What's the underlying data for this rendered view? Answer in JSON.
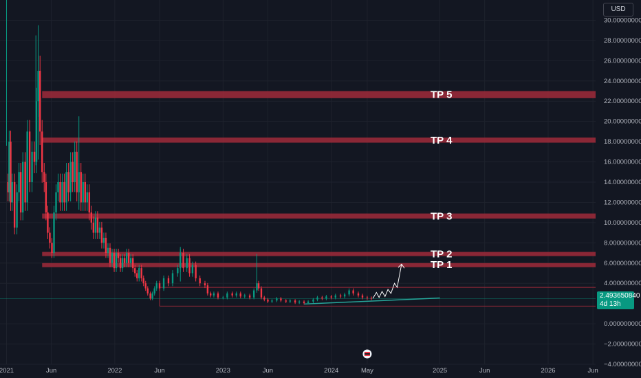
{
  "currency": "USD",
  "last_price": {
    "value": "2.493650840",
    "countdown": "4d 13h",
    "numeric": 2.49365084
  },
  "colors": {
    "background": "#131722",
    "grid": "#1e222d",
    "up": "#089981",
    "down": "#f23645",
    "band": "#a02a3a",
    "projection": "#ffffff",
    "trendline": "#26a69a"
  },
  "event_marker_icon": "earnings-flag-icon",
  "chart_data": {
    "type": "candlestick",
    "title": "",
    "y_axis": {
      "range": [
        -4,
        32
      ],
      "ticks": [
        30,
        28,
        26,
        24,
        22,
        20,
        18,
        16,
        14,
        12,
        10,
        8,
        6,
        4,
        0,
        -2,
        -4
      ],
      "tick_labels": [
        "30.000000000",
        "28.000000000",
        "26.000000000",
        "24.000000000",
        "22.000000000",
        "20.000000000",
        "18.000000000",
        "16.000000000",
        "14.000000000",
        "12.000000000",
        "10.000000000",
        "8.000000000",
        "6.000000000",
        "4.000000000",
        "0.000000000",
        "−2.000000000",
        "−4.000000000"
      ]
    },
    "x_axis": {
      "range": [
        "2020-12-10",
        "2026-06-10"
      ],
      "ticks": [
        "2021-01-01",
        "2021-06-01",
        "2022-01-01",
        "2022-06-01",
        "2023-01-01",
        "2023-06-01",
        "2024-01-01",
        "2024-05-01",
        "2025-01-01",
        "2025-06-01",
        "2026-01-01",
        "2026-06-01"
      ],
      "tick_labels": [
        "2021",
        "Jun",
        "2022",
        "Jun",
        "2023",
        "Jun",
        "2024",
        "May",
        "2025",
        "Jun",
        "2026",
        "Jun"
      ]
    },
    "price_path": [
      [
        "2021-01-01",
        14
      ],
      [
        "2021-01-06",
        13
      ],
      [
        "2021-01-10",
        18
      ],
      [
        "2021-01-15",
        12
      ],
      [
        "2021-01-20",
        14
      ],
      [
        "2021-01-28",
        9.5
      ],
      [
        "2021-02-05",
        13
      ],
      [
        "2021-02-12",
        15
      ],
      [
        "2021-02-18",
        11
      ],
      [
        "2021-02-25",
        16
      ],
      [
        "2021-03-05",
        12
      ],
      [
        "2021-03-12",
        19
      ],
      [
        "2021-03-20",
        14
      ],
      [
        "2021-03-28",
        17
      ],
      [
        "2021-04-05",
        16
      ],
      [
        "2021-04-12",
        22
      ],
      [
        "2021-04-18",
        25
      ],
      [
        "2021-04-24",
        19
      ],
      [
        "2021-05-01",
        15
      ],
      [
        "2021-05-08",
        14
      ],
      [
        "2021-05-14",
        11
      ],
      [
        "2021-05-20",
        9
      ],
      [
        "2021-05-27",
        8
      ],
      [
        "2021-06-03",
        7
      ],
      [
        "2021-06-10",
        11
      ],
      [
        "2021-06-17",
        13
      ],
      [
        "2021-06-24",
        14
      ],
      [
        "2021-07-01",
        12
      ],
      [
        "2021-07-08",
        14
      ],
      [
        "2021-07-15",
        12
      ],
      [
        "2021-07-22",
        15
      ],
      [
        "2021-07-29",
        13
      ],
      [
        "2021-08-05",
        16
      ],
      [
        "2021-08-12",
        14
      ],
      [
        "2021-08-19",
        17
      ],
      [
        "2021-08-26",
        13
      ],
      [
        "2021-09-02",
        15
      ],
      [
        "2021-09-09",
        12
      ],
      [
        "2021-09-16",
        14
      ],
      [
        "2021-09-23",
        12
      ],
      [
        "2021-09-30",
        13
      ],
      [
        "2021-10-07",
        11
      ],
      [
        "2021-10-14",
        10
      ],
      [
        "2021-10-21",
        9
      ],
      [
        "2021-10-28",
        10.5
      ],
      [
        "2021-11-04",
        9
      ],
      [
        "2021-11-11",
        9.5
      ],
      [
        "2021-11-18",
        8
      ],
      [
        "2021-11-25",
        8.5
      ],
      [
        "2021-12-02",
        7
      ],
      [
        "2021-12-09",
        7.5
      ],
      [
        "2021-12-16",
        6
      ],
      [
        "2021-12-23",
        7
      ],
      [
        "2021-12-30",
        5.5
      ],
      [
        "2022-01-06",
        7
      ],
      [
        "2022-01-13",
        6.5
      ],
      [
        "2022-01-20",
        5.5
      ],
      [
        "2022-01-27",
        6.5
      ],
      [
        "2022-02-03",
        6
      ],
      [
        "2022-02-10",
        7
      ],
      [
        "2022-02-17",
        6
      ],
      [
        "2022-02-24",
        6.5
      ],
      [
        "2022-03-03",
        5.5
      ],
      [
        "2022-03-10",
        5
      ],
      [
        "2022-03-17",
        4.5
      ],
      [
        "2022-03-24",
        5.5
      ],
      [
        "2022-04-01",
        4.5
      ],
      [
        "2022-04-08",
        4
      ],
      [
        "2022-04-15",
        3.5
      ],
      [
        "2022-04-22",
        3
      ],
      [
        "2022-05-01",
        2.5
      ],
      [
        "2022-05-08",
        3
      ],
      [
        "2022-05-15",
        3.5
      ],
      [
        "2022-05-22",
        4
      ],
      [
        "2022-06-01",
        3.5
      ],
      [
        "2022-06-15",
        4.5
      ],
      [
        "2022-07-01",
        4
      ],
      [
        "2022-07-15",
        5
      ],
      [
        "2022-08-01",
        5.5
      ],
      [
        "2022-08-10",
        7
      ],
      [
        "2022-08-20",
        5.5
      ],
      [
        "2022-09-01",
        6.5
      ],
      [
        "2022-09-10",
        5
      ],
      [
        "2022-09-20",
        5.8
      ],
      [
        "2022-10-01",
        4.5
      ],
      [
        "2022-10-15",
        4
      ],
      [
        "2022-11-01",
        3.8
      ],
      [
        "2022-11-10",
        3
      ],
      [
        "2022-11-20",
        2.8
      ],
      [
        "2022-12-01",
        3
      ],
      [
        "2022-12-15",
        2.6
      ],
      [
        "2023-01-01",
        2.6
      ],
      [
        "2023-01-15",
        3
      ],
      [
        "2023-02-01",
        2.8
      ],
      [
        "2023-02-15",
        3
      ],
      [
        "2023-03-01",
        2.7
      ],
      [
        "2023-03-15",
        2.8
      ],
      [
        "2023-04-01",
        2.6
      ],
      [
        "2023-04-15",
        3.3
      ],
      [
        "2023-04-25",
        4
      ],
      [
        "2023-05-01",
        3.5
      ],
      [
        "2023-05-10",
        2.6
      ],
      [
        "2023-05-20",
        2.4
      ],
      [
        "2023-06-01",
        2.2
      ],
      [
        "2023-06-15",
        2.3
      ],
      [
        "2023-07-01",
        2.5
      ],
      [
        "2023-07-15",
        2.3
      ],
      [
        "2023-08-01",
        2.2
      ],
      [
        "2023-08-15",
        2.3
      ],
      [
        "2023-09-01",
        2.1
      ],
      [
        "2023-09-15",
        2.2
      ],
      [
        "2023-10-01",
        2.05
      ],
      [
        "2023-10-15",
        2.2
      ],
      [
        "2023-11-01",
        2.4
      ],
      [
        "2023-11-15",
        2.6
      ],
      [
        "2023-12-01",
        2.5
      ],
      [
        "2023-12-15",
        2.7
      ],
      [
        "2024-01-01",
        2.6
      ],
      [
        "2024-01-15",
        2.8
      ],
      [
        "2024-02-01",
        2.7
      ],
      [
        "2024-02-15",
        2.9
      ],
      [
        "2024-03-01",
        3.3
      ],
      [
        "2024-03-15",
        3
      ],
      [
        "2024-04-01",
        2.8
      ],
      [
        "2024-04-15",
        2.6
      ],
      [
        "2024-05-01",
        2.55
      ],
      [
        "2024-05-15",
        2.5
      ]
    ],
    "spikes": [
      {
        "date": "2021-01-01",
        "high": 32
      },
      {
        "date": "2021-04-18",
        "high": 29.5
      },
      {
        "date": "2021-04-10",
        "high": 28.5
      },
      {
        "date": "2021-09-02",
        "high": 20.5
      },
      {
        "date": "2022-08-10",
        "high": 7.6
      },
      {
        "date": "2023-04-25",
        "high": 6.9
      }
    ],
    "resistance_bands": [
      {
        "label": "TP 5",
        "from": 22.3,
        "to": 23.0
      },
      {
        "label": "TP 4",
        "from": 17.9,
        "to": 18.4
      },
      {
        "label": "TP 3",
        "from": 10.4,
        "to": 10.9
      },
      {
        "label": "TP 2",
        "from": 6.7,
        "to": 7.1
      },
      {
        "label": "TP 1",
        "from": 5.7,
        "to": 6.0
      }
    ],
    "band_start": "2021-05-01",
    "horizontal_lines": [
      {
        "from": "2022-06-01",
        "value": 3.6
      },
      {
        "from": "2022-06-01",
        "value": 1.75
      }
    ],
    "trendline": [
      [
        "2023-10-01",
        1.95
      ],
      [
        "2025-01-01",
        2.55
      ]
    ],
    "projection_path": [
      [
        "2024-05-20",
        2.5
      ],
      [
        "2024-06-01",
        3.1
      ],
      [
        "2024-06-10",
        2.6
      ],
      [
        "2024-06-20",
        3.2
      ],
      [
        "2024-06-30",
        2.7
      ],
      [
        "2024-07-10",
        3.4
      ],
      [
        "2024-07-20",
        3.0
      ],
      [
        "2024-08-01",
        4.0
      ],
      [
        "2024-08-10",
        3.6
      ],
      [
        "2024-08-25",
        5.9
      ]
    ],
    "event_marker_date": "2024-05-01"
  }
}
